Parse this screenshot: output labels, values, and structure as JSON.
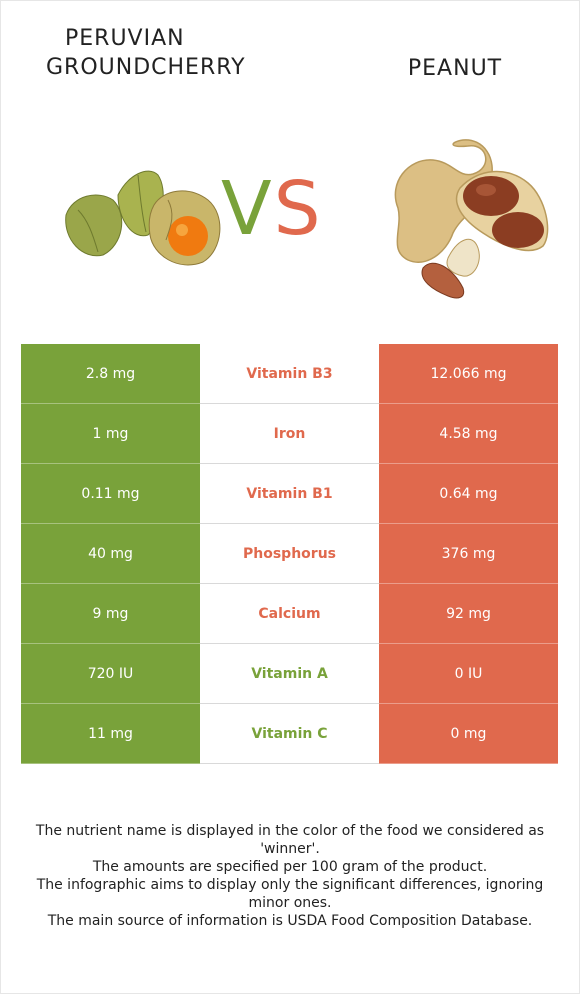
{
  "header": {
    "left_title_line1": "PERUVIAN",
    "left_title_line2": "GROUNDCHERRY",
    "right_title": "PEANUT",
    "vs_v": "V",
    "vs_s": "S"
  },
  "colors": {
    "left_food": "#79a23a",
    "right_food": "#e0694d"
  },
  "rows": [
    {
      "left": "2.8 mg",
      "nutrient": "Vitamin B3",
      "right": "12.066 mg",
      "winner": "right"
    },
    {
      "left": "1 mg",
      "nutrient": "Iron",
      "right": "4.58 mg",
      "winner": "right"
    },
    {
      "left": "0.11 mg",
      "nutrient": "Vitamin B1",
      "right": "0.64 mg",
      "winner": "right"
    },
    {
      "left": "40 mg",
      "nutrient": "Phosphorus",
      "right": "376 mg",
      "winner": "right"
    },
    {
      "left": "9 mg",
      "nutrient": "Calcium",
      "right": "92 mg",
      "winner": "right"
    },
    {
      "left": "720 IU",
      "nutrient": "Vitamin A",
      "right": "0 IU",
      "winner": "left"
    },
    {
      "left": "11 mg",
      "nutrient": "Vitamin C",
      "right": "0 mg",
      "winner": "left"
    }
  ],
  "notes": [
    "The nutrient name is displayed in the color of the food we considered as 'winner'.",
    "The amounts are specified per 100 gram of the product.",
    "The infographic aims to display only the significant differences, ignoring minor ones.",
    "The main source of information is USDA Food Composition Database."
  ]
}
